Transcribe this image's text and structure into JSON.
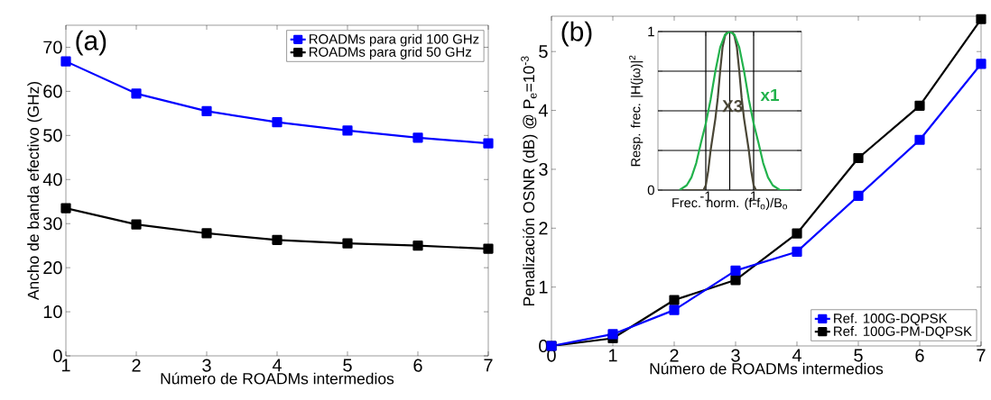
{
  "chart_data": [
    {
      "type": "line",
      "xlabel": "Número de ROADMs intermedios",
      "ylabel": "Ancho de banda efectivo (GHz)",
      "annotations": [
        "(a)"
      ],
      "x": [
        1,
        2,
        3,
        4,
        5,
        6,
        7
      ],
      "xlim": [
        1,
        7
      ],
      "xticks": [
        1,
        2,
        3,
        4,
        5,
        6,
        7
      ],
      "ylim": [
        0,
        75
      ],
      "yticks": [
        0,
        10,
        20,
        30,
        40,
        50,
        60,
        70
      ],
      "marker": "square",
      "legend": "top right",
      "series": [
        {
          "name": "ROADMs para grid 100 GHz",
          "color": "#0000ff",
          "values": [
            66.8,
            59.5,
            55.5,
            53.0,
            51.1,
            49.5,
            48.2
          ]
        },
        {
          "name": "ROADMs para grid 50 GHz",
          "color": "#000000",
          "values": [
            33.5,
            29.8,
            27.8,
            26.3,
            25.5,
            25.0,
            24.3
          ]
        }
      ]
    },
    {
      "type": "line",
      "xlabel": "Número de ROADMs intermedios",
      "ylabel": "Penalización OSNR (dB) @ P$_{e}$=10$^{-3}$",
      "annotations": [
        "(b)"
      ],
      "x": [
        0,
        1,
        2,
        3,
        4,
        5,
        6,
        7
      ],
      "xlim": [
        0,
        7
      ],
      "xticks": [
        0,
        1,
        2,
        3,
        4,
        5,
        6,
        7
      ],
      "ylim": [
        0,
        5.6
      ],
      "yticks": [
        0,
        1,
        2,
        3,
        4,
        5
      ],
      "marker": "square",
      "legend": "bottom right",
      "series": [
        {
          "name": "Ref. 100G-DQPSK",
          "color": "#0000ff",
          "values": [
            0,
            0.2,
            0.61,
            1.28,
            1.6,
            2.55,
            3.5,
            4.79
          ]
        },
        {
          "name": "Ref. 100G-PM-DQPSK",
          "color": "#000000",
          "values": [
            0,
            0.13,
            0.78,
            1.12,
            1.91,
            3.19,
            4.08,
            5.55
          ]
        }
      ]
    },
    {
      "type": "line",
      "xlabel": "Frec. norm. (f-f$_{o}$)/B$_{o}$",
      "ylabel": "Resp. frec. |H(jω)|$^{2}$",
      "xlim": [
        -3,
        3
      ],
      "xticks": [
        -1,
        {
          "value": 0,
          "label": null
        },
        1
      ],
      "ylim": [
        0,
        1
      ],
      "yticks": [
        0,
        {
          "value": 0.25,
          "label": null
        },
        {
          "value": 0.5,
          "label": null
        },
        {
          "value": 0.75,
          "label": null
        },
        1
      ],
      "grid": true,
      "legend": false,
      "series": [
        {
          "name": "x1",
          "color": "#22b24c",
          "x": [
            -2.1,
            -1.8,
            -1.6,
            -1.4,
            -1.2,
            -1.0,
            -0.8,
            -0.6,
            -0.4,
            -0.2,
            0,
            0.2,
            0.4,
            0.6,
            0.8,
            1.0,
            1.2,
            1.4,
            1.6,
            1.8,
            2.1,
            2.5
          ],
          "values": [
            0,
            0.03,
            0.08,
            0.17,
            0.3,
            0.42,
            0.57,
            0.75,
            0.9,
            0.98,
            1,
            0.98,
            0.9,
            0.75,
            0.57,
            0.42,
            0.3,
            0.17,
            0.08,
            0.03,
            0,
            0
          ]
        },
        {
          "name": "X3",
          "color": "#4a4636",
          "x": [
            -2.1,
            -1.1,
            -1.0,
            -0.9,
            -0.8,
            -0.7,
            -0.6,
            -0.5,
            -0.4,
            -0.3,
            -0.2,
            -0.1,
            0,
            0.1,
            0.2,
            0.3,
            0.4,
            0.5,
            0.6,
            0.7,
            0.8,
            0.9,
            1.0,
            1.1,
            2.5
          ],
          "values": [
            0,
            0,
            0.03,
            0.12,
            0.25,
            0.35,
            0.45,
            0.58,
            0.75,
            0.9,
            0.97,
            1,
            1,
            1,
            0.97,
            0.9,
            0.75,
            0.58,
            0.45,
            0.35,
            0.25,
            0.12,
            0.03,
            0,
            0
          ]
        }
      ]
    }
  ]
}
